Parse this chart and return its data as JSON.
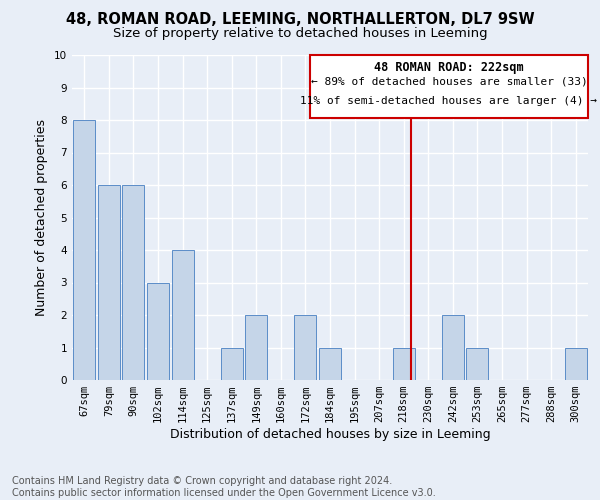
{
  "title": "48, ROMAN ROAD, LEEMING, NORTHALLERTON, DL7 9SW",
  "subtitle": "Size of property relative to detached houses in Leeming",
  "xlabel": "Distribution of detached houses by size in Leeming",
  "ylabel": "Number of detached properties",
  "categories": [
    "67sqm",
    "79sqm",
    "90sqm",
    "102sqm",
    "114sqm",
    "125sqm",
    "137sqm",
    "149sqm",
    "160sqm",
    "172sqm",
    "184sqm",
    "195sqm",
    "207sqm",
    "218sqm",
    "230sqm",
    "242sqm",
    "253sqm",
    "265sqm",
    "277sqm",
    "288sqm",
    "300sqm"
  ],
  "values": [
    8,
    6,
    6,
    3,
    4,
    0,
    1,
    2,
    0,
    2,
    1,
    0,
    0,
    1,
    0,
    2,
    1,
    0,
    0,
    0,
    1
  ],
  "bar_color": "#c5d5e8",
  "bar_edge_color": "#5b8dc8",
  "subject_label": "48 ROMAN ROAD: 222sqm",
  "annotation_line1": "← 89% of detached houses are smaller (33)",
  "annotation_line2": "11% of semi-detached houses are larger (4) →",
  "red_line_color": "#cc0000",
  "annotation_box_color": "#cc0000",
  "ylim": [
    0,
    10
  ],
  "yticks": [
    0,
    1,
    2,
    3,
    4,
    5,
    6,
    7,
    8,
    9,
    10
  ],
  "footer_line1": "Contains HM Land Registry data © Crown copyright and database right 2024.",
  "footer_line2": "Contains public sector information licensed under the Open Government Licence v3.0.",
  "bg_color": "#e8eef7",
  "plot_bg_color": "#e8eef7",
  "grid_color": "#ffffff",
  "title_fontsize": 10.5,
  "subtitle_fontsize": 9.5,
  "axis_label_fontsize": 9,
  "tick_fontsize": 7.5,
  "annotation_fontsize": 8,
  "footer_fontsize": 7
}
